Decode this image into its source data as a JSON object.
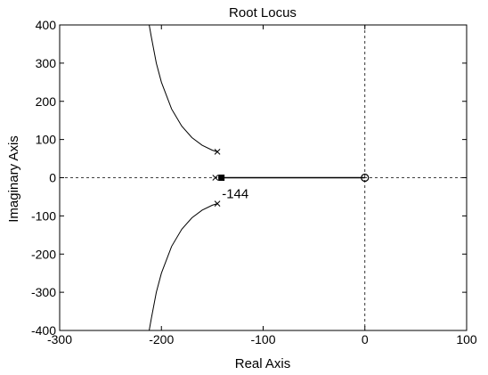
{
  "chart_data": {
    "type": "line",
    "title": "Root Locus",
    "xlabel": "Real Axis",
    "ylabel": "Imaginary Axis",
    "xlim": [
      -300,
      100
    ],
    "ylim": [
      -400,
      400
    ],
    "x_ticks": [
      -300,
      -200,
      -100,
      0,
      100
    ],
    "y_ticks": [
      -400,
      -300,
      -200,
      -100,
      0,
      100,
      200,
      300,
      400
    ],
    "x_tick_labels": [
      "-300",
      "-200",
      "-100",
      "0",
      "100"
    ],
    "y_tick_labels": [
      "-400",
      "-300",
      "-200",
      "-100",
      "0",
      "100",
      "200",
      "300",
      "400"
    ],
    "grid": "dashed lines at real = 0 and imaginary = 0 only",
    "legend": "none",
    "series": [
      {
        "x": [
          -145,
          -150,
          -160,
          -170,
          -180,
          -190,
          -200,
          -205,
          -210,
          -212
        ],
        "y": [
          68,
          72,
          85,
          105,
          135,
          180,
          250,
          300,
          370,
          400
        ]
      },
      {
        "x": [
          -145,
          -150,
          -160,
          -170,
          -180,
          -190,
          -200,
          -205,
          -210,
          -212
        ],
        "y": [
          -68,
          -72,
          -85,
          -105,
          -135,
          -180,
          -250,
          -300,
          -370,
          -400
        ]
      },
      {
        "x": [
          -144,
          0
        ],
        "y": [
          0,
          0
        ]
      }
    ],
    "poles": [
      {
        "x": -145,
        "y": 68
      },
      {
        "x": -145,
        "y": -68
      },
      {
        "x": -147,
        "y": 0
      }
    ],
    "zeros": [
      {
        "x": 0,
        "y": 0
      }
    ],
    "closed_loop_marker": {
      "x": -141,
      "y": 0
    },
    "annotations": [
      {
        "text": "-144",
        "x": -144,
        "y": 0
      }
    ],
    "colors": {
      "line": "#000000",
      "background": "#ffffff"
    }
  }
}
